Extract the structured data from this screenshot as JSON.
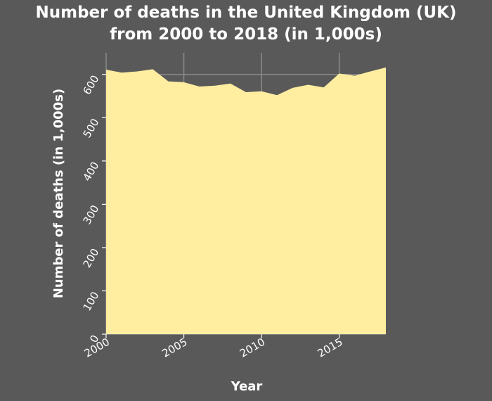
{
  "chart_data": {
    "type": "area",
    "title_lines": [
      "Number of deaths in the United Kingdom (UK)",
      "from 2000 to 2018 (in 1,000s)"
    ],
    "xlabel": "Year",
    "ylabel": "Number of deaths (in 1,000s)",
    "x": [
      2000,
      2001,
      2002,
      2003,
      2004,
      2005,
      2006,
      2007,
      2008,
      2009,
      2010,
      2011,
      2012,
      2013,
      2014,
      2015,
      2016,
      2017,
      2018
    ],
    "series": [
      {
        "values": [
          611,
          604,
          607,
          612,
          584,
          582,
          572,
          574,
          579,
          559,
          561,
          552,
          569,
          576,
          570,
          602,
          597,
          607,
          616
        ]
      }
    ],
    "xlim": [
      2000,
      2018
    ],
    "ylim": [
      0,
      650
    ],
    "xticks": [
      2000,
      2005,
      2010,
      2015
    ],
    "yticks": [
      0,
      100,
      200,
      300,
      400,
      500,
      600
    ],
    "grid": true,
    "colors": {
      "background": "#595959",
      "area_fill": "#ffeda0",
      "grid": "#8a8a8a",
      "text": "#ffffff"
    }
  }
}
